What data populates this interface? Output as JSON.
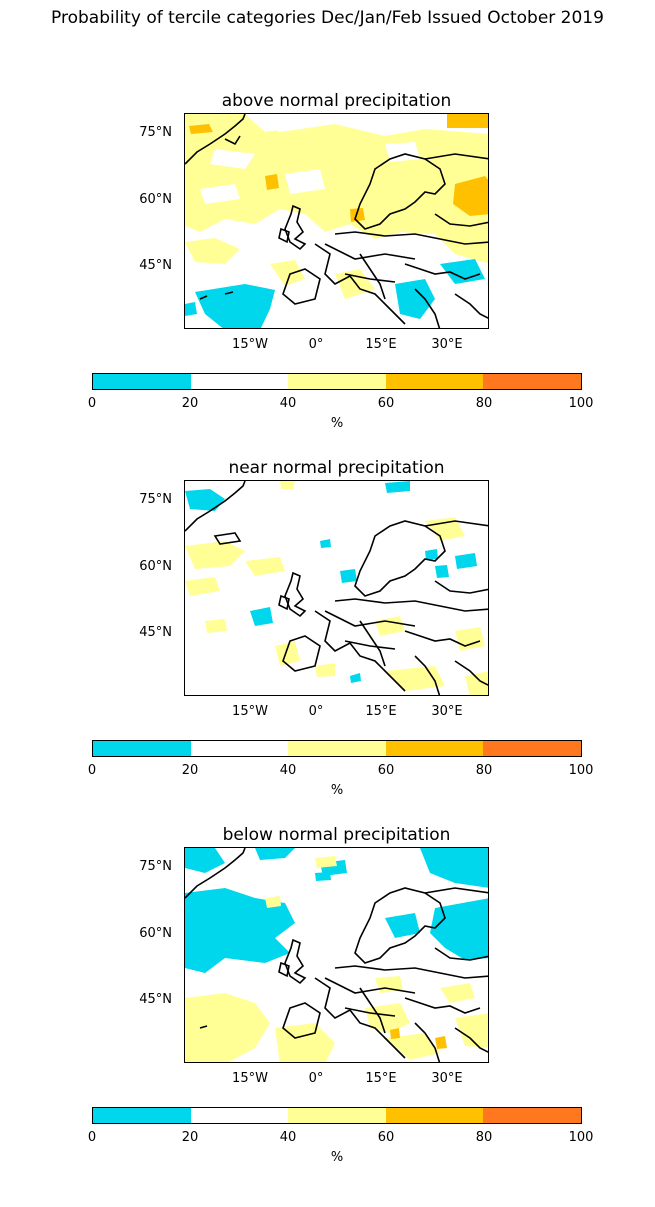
{
  "figure_title": "Probability of tercile categories Dec/Jan/Feb Issued October 2019",
  "panels": [
    {
      "title": "above normal precipitation"
    },
    {
      "title": "near normal precipitation"
    },
    {
      "title": "below normal precipitation"
    }
  ],
  "latitude_labels": [
    "75°N",
    "60°N",
    "45°N"
  ],
  "longitude_labels": [
    "15°W",
    "0°",
    "15°E",
    "30°E"
  ],
  "colorbar": {
    "unit_label": "%",
    "ticks": [
      "0",
      "20",
      "40",
      "60",
      "80",
      "100"
    ],
    "bins": [
      {
        "range": "0-20",
        "color": "#00d6ec"
      },
      {
        "range": "20-40",
        "color": "#ffffff"
      },
      {
        "range": "40-60",
        "color": "#ffff96"
      },
      {
        "range": "60-80",
        "color": "#ffc000"
      },
      {
        "range": "80-100",
        "color": "#ff7820"
      }
    ]
  }
}
